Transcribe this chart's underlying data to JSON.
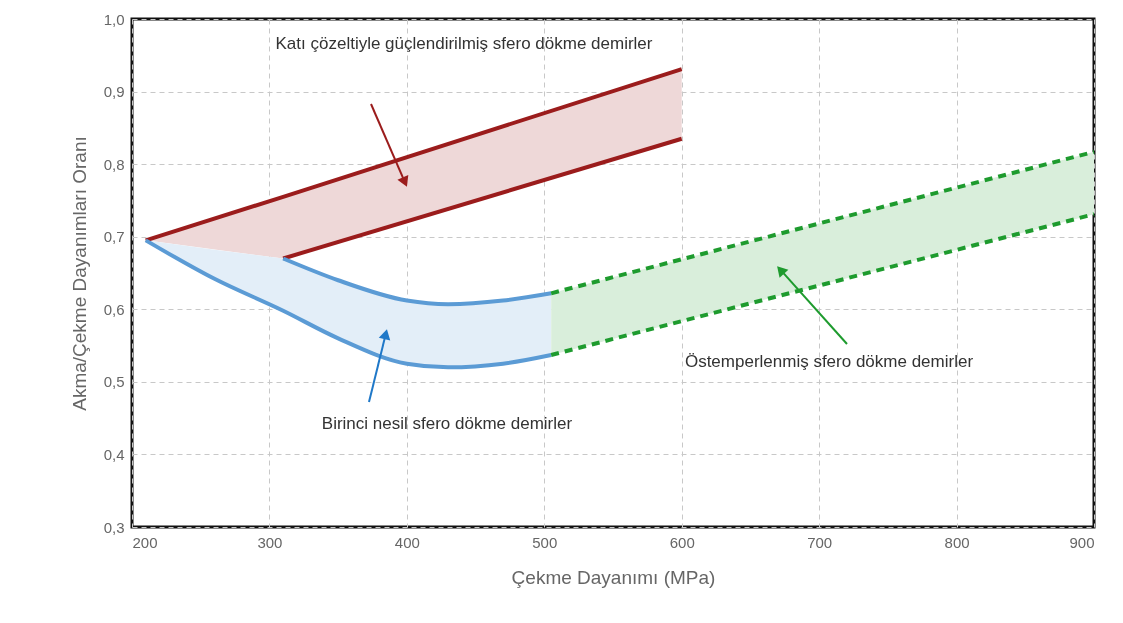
{
  "chart_data": {
    "type": "line",
    "xlabel": "Çekme Dayanımı (MPa)",
    "ylabel": "Akma/Çekme Dayanımları Oranı",
    "xlim": [
      200,
      900
    ],
    "xticks": [
      200,
      300,
      400,
      500,
      600,
      700,
      800,
      900
    ],
    "ylim": [
      0.3,
      1.0
    ],
    "yticks": [
      {
        "value": 0.3,
        "label": "0,3"
      },
      {
        "value": 0.4,
        "label": "0,4"
      },
      {
        "value": 0.5,
        "label": "0,5"
      },
      {
        "value": 0.6,
        "label": "0,6"
      },
      {
        "value": 0.7,
        "label": "0,7"
      },
      {
        "value": 0.8,
        "label": "0,8"
      },
      {
        "value": 0.9,
        "label": "0,9"
      },
      {
        "value": 1.0,
        "label": "1,0"
      }
    ],
    "grid": true,
    "series": [
      {
        "color": "#9b1c1c",
        "line_style": "solid",
        "x": [
          210,
          310,
          600
        ],
        "values": [
          0.695,
          0.755,
          0.931
        ],
        "lower": [
          0.695,
          0.67,
          0.835
        ],
        "upper": [
          0.695,
          0.755,
          0.931
        ]
      },
      {
        "color": "#9b1c1c",
        "line_style": "solid",
        "x": [
          310,
          600
        ],
        "values": [
          0.67,
          0.835
        ]
      },
      {
        "color": "#5b9bd5",
        "line_style": "solid",
        "x": [
          310,
          350,
          400,
          430,
          470,
          505
        ],
        "values": [
          0.67,
          0.64,
          0.612,
          0.607,
          0.612,
          0.622
        ]
      },
      {
        "color": "#5b9bd5",
        "line_style": "solid",
        "x": [
          210,
          260,
          310,
          350,
          400,
          430,
          470,
          505
        ],
        "values": [
          0.695,
          0.642,
          0.598,
          0.56,
          0.525,
          0.52,
          0.525,
          0.537
        ],
        "lower": [
          0.695,
          0.642,
          0.598,
          0.56,
          0.525,
          0.52,
          0.525,
          0.537
        ],
        "upper": [
          0.695,
          0.682,
          0.67,
          0.64,
          0.612,
          0.607,
          0.612,
          0.622
        ]
      },
      {
        "color": "#1e9b2e",
        "line_style": "dashed",
        "x": [
          505,
          900
        ],
        "values": [
          0.622,
          0.817
        ],
        "lower": [
          0.537,
          0.731
        ],
        "upper": [
          0.622,
          0.817
        ]
      },
      {
        "color": "#1e9b2e",
        "line_style": "dashed",
        "x": [
          505,
          900
        ],
        "values": [
          0.537,
          0.731
        ]
      }
    ],
    "annotations": [
      "Katı çözeltiyle güçlendirilmiş sfero dökme demirler",
      "Birinci nesil sfero dökme demirler",
      "Östemperlenmiş sfero dökme demirler"
    ]
  }
}
